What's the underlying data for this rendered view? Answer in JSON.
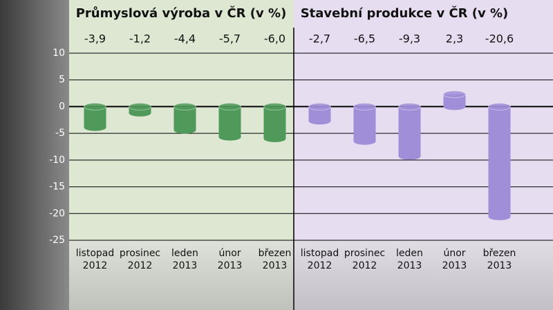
{
  "chart_data": [
    {
      "type": "bar",
      "title": "Průmyslová výroba v ČR (v %)",
      "categories": [
        [
          "listopad",
          "2012"
        ],
        [
          "prosinec",
          "2012"
        ],
        [
          "leden",
          "2013"
        ],
        [
          "únor",
          "2013"
        ],
        [
          "březen",
          "2013"
        ]
      ],
      "values": [
        -3.9,
        -1.2,
        -4.4,
        -5.7,
        -6.0
      ],
      "value_labels": [
        "-3,9",
        "-1,2",
        "-4,4",
        "-5,7",
        "-6,0"
      ],
      "color": "#4f9a5a",
      "ylim": [
        -25,
        10
      ],
      "yticks": [
        10,
        5,
        0,
        -5,
        -10,
        -15,
        -20,
        -25
      ],
      "grid": true
    },
    {
      "type": "bar",
      "title": "Stavební produkce v ČR (v %)",
      "categories": [
        [
          "listopad",
          "2012"
        ],
        [
          "prosinec",
          "2012"
        ],
        [
          "leden",
          "2013"
        ],
        [
          "únor",
          "2013"
        ],
        [
          "březen",
          "2013"
        ]
      ],
      "values": [
        -2.7,
        -6.5,
        -9.3,
        2.3,
        -20.6
      ],
      "value_labels": [
        "-2,7",
        "-6,5",
        "-9,3",
        "2,3",
        "-20,6"
      ],
      "color": "#a08fd8",
      "ylim": [
        -25,
        10
      ],
      "grid": true
    }
  ]
}
